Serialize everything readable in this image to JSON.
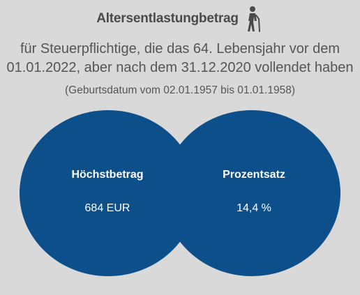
{
  "header": {
    "title": "Altersentlastungbetrag",
    "icon": "elderly-person-icon",
    "subtitle_line1": "für Steuerpflichtige, die das 64. Lebensjahr vor dem",
    "subtitle_line2": "01.01.2022, aber nach dem 31.12.2020 vollendet haben",
    "note": "(Geburtsdatum vom 02.01.1957 bis 01.01.1958)"
  },
  "left_circle": {
    "heading": "Höchstbetrag",
    "value": "684 EUR"
  },
  "right_circle": {
    "heading": "Prozentsatz",
    "value": "14,4 %"
  },
  "colors": {
    "background": "#d9d9d9",
    "circle": "#0d4f8a",
    "text_dark": "#4a4a4a",
    "text_white": "#ffffff"
  }
}
